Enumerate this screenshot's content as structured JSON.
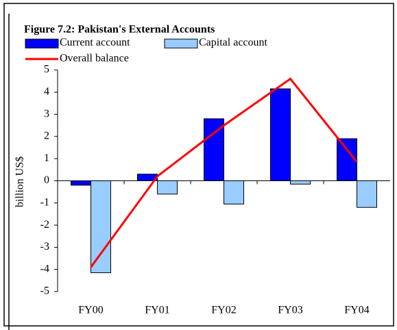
{
  "chart_data": {
    "type": "bar",
    "title": "Figure 7.2: Pakistan's External Accounts",
    "y_label": "billion US$",
    "categories": [
      "FY00",
      "FY01",
      "FY02",
      "FY03",
      "FY04"
    ],
    "series": [
      {
        "name": "Current account",
        "color": "#0000ff",
        "type": "bar",
        "values": [
          -0.2,
          0.3,
          2.8,
          4.15,
          1.9
        ]
      },
      {
        "name": "Capital account",
        "color": "#99ccff",
        "type": "bar",
        "values": [
          -4.15,
          -0.6,
          -1.05,
          -0.15,
          -1.2
        ]
      },
      {
        "name": "Overall balance",
        "color": "#ff0000",
        "type": "line",
        "values": [
          -3.9,
          0.2,
          2.5,
          4.6,
          0.85
        ]
      }
    ],
    "ylim": [
      -5,
      5
    ],
    "yticks": [
      -5,
      -4,
      -3,
      -2,
      -1,
      0,
      1,
      2,
      3,
      4,
      5
    ],
    "legend": "top",
    "grid": false
  }
}
